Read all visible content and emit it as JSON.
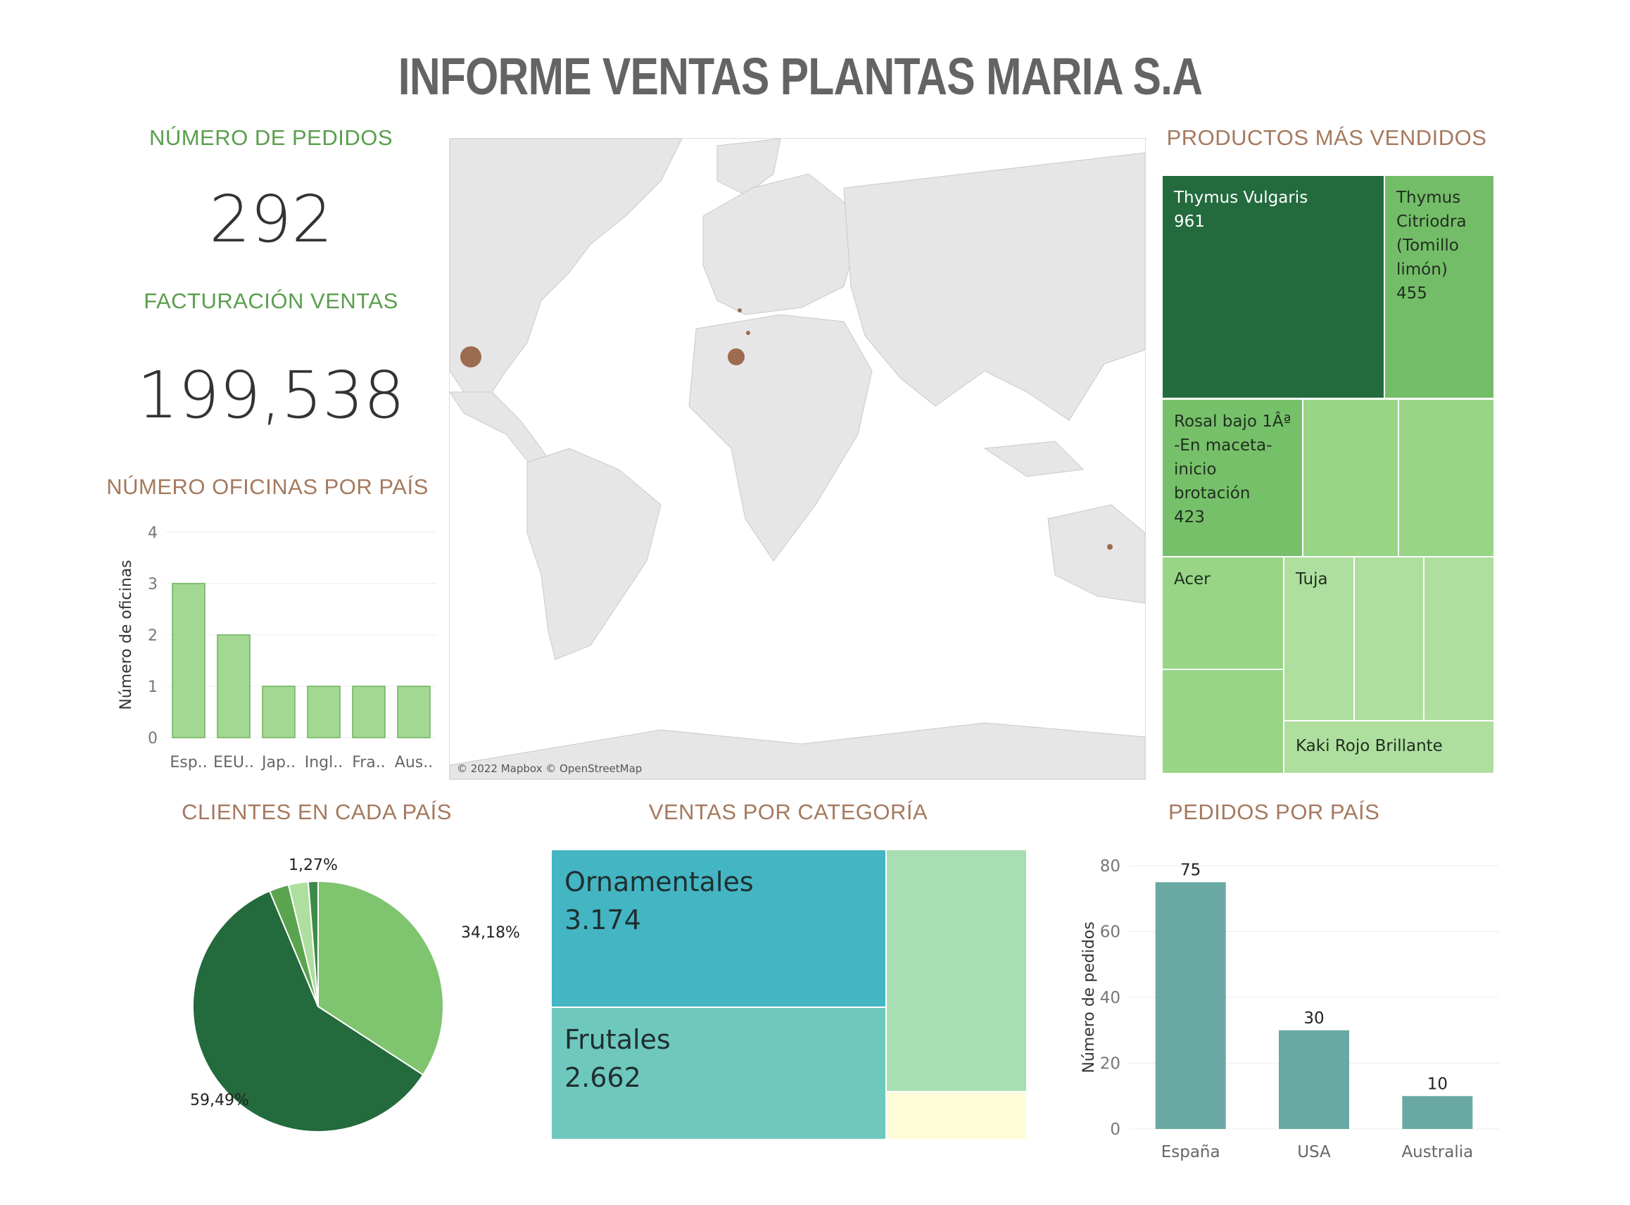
{
  "title": "INFORME VENTAS PLANTAS MARIA S.A",
  "kpis": {
    "pedidos_label": "NÚMERO DE PEDIDOS",
    "pedidos_value": "292",
    "facturacion_label": "FACTURACIÓN VENTAS",
    "facturacion_value": "199,538"
  },
  "section_titles": {
    "oficinas": "NÚMERO OFICINAS POR PAÍS",
    "productos": "PRODUCTOS MÁS VENDIDOS",
    "clientes": "CLIENTES EN CADA PAÍS",
    "categoria": "VENTAS POR CATEGORÍA",
    "pedidos_pais": "PEDIDOS POR PAÍS"
  },
  "map": {
    "attribution": "© 2022 Mapbox © OpenStreetMap",
    "marker_color": "#9c6b50"
  },
  "products": [
    {
      "name": "Thymus Vulgaris",
      "value": "961"
    },
    {
      "name": "Thymus Citriodra (Tomillo limón)",
      "value": "455"
    },
    {
      "name": "Rosal bajo 1Âª -En maceta-inicio brotación",
      "value": "423"
    },
    {
      "name": "Acer",
      "value": ""
    },
    {
      "name": "Tuja",
      "value": ""
    },
    {
      "name": "Kaki Rojo Brillante",
      "value": ""
    }
  ],
  "categories": [
    {
      "name": "Ornamentales",
      "value": "3.174"
    },
    {
      "name": "Frutales",
      "value": "2.662"
    }
  ],
  "colors": {
    "green_dark": "#236a3d",
    "green_mid": "#74bd68",
    "green_light": "#98d585",
    "green_pale": "#aedf9f",
    "teal": "#6aa9a3",
    "cyan": "#43b5c3",
    "aqua": "#6fc8bd"
  },
  "chart_data": [
    {
      "type": "bar",
      "title": "NÚMERO OFICINAS POR PAÍS",
      "ylabel": "Número de oficinas",
      "categories": [
        "Esp..",
        "EEU..",
        "Jap..",
        "Ingl..",
        "Fra..",
        "Aus.."
      ],
      "values": [
        3,
        2,
        1,
        1,
        1,
        1
      ],
      "ylim": [
        0,
        4
      ],
      "yticks": [
        0,
        1,
        2,
        3,
        4
      ],
      "grid": true
    },
    {
      "type": "pie",
      "title": "CLIENTES EN CADA PAÍS",
      "values": [
        34.18,
        59.49,
        2.53,
        2.53,
        1.27
      ],
      "labels": [
        "34,18%",
        "59,49%",
        "",
        "",
        "1,27%"
      ],
      "colors": [
        "#7fc46f",
        "#236a3d",
        "#5aa34f",
        "#aedf9f",
        "#3f8a49"
      ]
    },
    {
      "type": "bar",
      "title": "PEDIDOS POR PAÍS",
      "ylabel": "Número de pedidos",
      "categories": [
        "España",
        "USA",
        "Australia"
      ],
      "values": [
        75,
        30,
        10
      ],
      "ylim": [
        0,
        80
      ],
      "yticks": [
        0,
        20,
        40,
        60,
        80
      ],
      "grid": true
    }
  ]
}
